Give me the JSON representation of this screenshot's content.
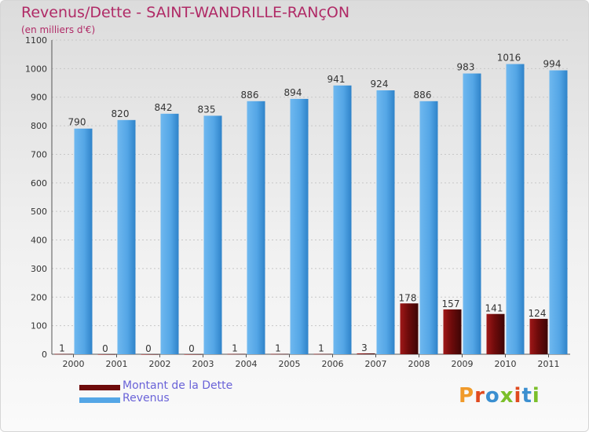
{
  "header": {
    "title": "Revenus/Dette - SAINT-WANDRILLE-RANçON",
    "subtitle": "(en milliers d'€)"
  },
  "logo": {
    "text": "Proxiti",
    "letter_colors": [
      "#f09a2a",
      "#e04a1f",
      "#3b8fd0",
      "#7bbf2a",
      "#e04a1f",
      "#3b8fd0",
      "#7bbf2a"
    ]
  },
  "colors": {
    "debt": "#6e0b0b",
    "revenue": "#54a6e6",
    "axis_text": "#333333",
    "grid": "#c7c7c7",
    "title": "#b02a66",
    "legend_text": "#6a63d8"
  },
  "chart_data": {
    "type": "bar",
    "title": "Revenus/Dette - SAINT-WANDRILLE-RANçON",
    "ylabel": "(en milliers d'€)",
    "xlabel": "",
    "ylim": [
      0,
      1100
    ],
    "yticks": [
      0,
      100,
      200,
      300,
      400,
      500,
      600,
      700,
      800,
      900,
      1000,
      1100
    ],
    "grid": true,
    "legend_position": "bottom-left",
    "categories": [
      "2000",
      "2001",
      "2002",
      "2003",
      "2004",
      "2005",
      "2006",
      "2007",
      "2008",
      "2009",
      "2010",
      "2011"
    ],
    "series": [
      {
        "name": "Montant de la Dette",
        "color": "#6e0b0b",
        "values": [
          1,
          0,
          0,
          0,
          1,
          1,
          1,
          3,
          178,
          157,
          141,
          124
        ]
      },
      {
        "name": "Revenus",
        "color": "#54a6e6",
        "values": [
          790,
          820,
          842,
          835,
          886,
          894,
          941,
          924,
          886,
          983,
          1016,
          994
        ]
      }
    ]
  }
}
